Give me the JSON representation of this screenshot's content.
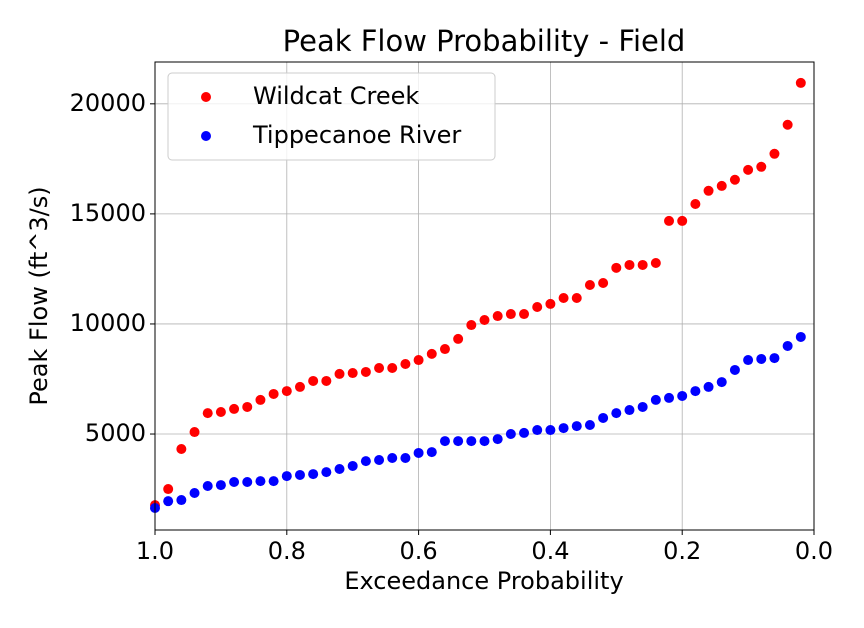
{
  "chart_data": {
    "type": "scatter",
    "title": "Peak Flow Probability - Field",
    "xlabel": "Exceedance Probability",
    "ylabel": "Peak Flow (ft^3/s)",
    "x": [
      1.0,
      0.98,
      0.96,
      0.94,
      0.92,
      0.9,
      0.88,
      0.86,
      0.84,
      0.82,
      0.8,
      0.78,
      0.76,
      0.74,
      0.72,
      0.7,
      0.68,
      0.66,
      0.64,
      0.62,
      0.6,
      0.58,
      0.56,
      0.54,
      0.52,
      0.5,
      0.48,
      0.46,
      0.44,
      0.42,
      0.4,
      0.38,
      0.36,
      0.34,
      0.32,
      0.3,
      0.28,
      0.26,
      0.24,
      0.22,
      0.2,
      0.18,
      0.16,
      0.14,
      0.12,
      0.1,
      0.08,
      0.06,
      0.04,
      0.02
    ],
    "series": [
      {
        "name": "Wildcat Creek",
        "color": "#ff0000",
        "values": [
          1770,
          2500,
          4320,
          5090,
          5950,
          6000,
          6140,
          6230,
          6550,
          6820,
          6950,
          7140,
          7410,
          7410,
          7730,
          7770,
          7820,
          8000,
          8000,
          8180,
          8360,
          8640,
          8860,
          9320,
          9950,
          10180,
          10360,
          10450,
          10450,
          10770,
          10910,
          11180,
          11180,
          11770,
          11860,
          12550,
          12680,
          12680,
          12770,
          14680,
          14680,
          15450,
          16050,
          16270,
          16550,
          17000,
          17140,
          17730,
          19050,
          20950
        ]
      },
      {
        "name": "Tippecanoe River",
        "color": "#0000ff",
        "values": [
          1640,
          1950,
          2000,
          2320,
          2640,
          2680,
          2820,
          2820,
          2860,
          2860,
          3090,
          3140,
          3180,
          3270,
          3410,
          3550,
          3770,
          3820,
          3910,
          3910,
          4140,
          4180,
          4680,
          4680,
          4680,
          4680,
          4770,
          5000,
          5050,
          5180,
          5180,
          5270,
          5360,
          5410,
          5730,
          5950,
          6090,
          6230,
          6550,
          6640,
          6730,
          6950,
          7140,
          7360,
          7910,
          8360,
          8410,
          8450,
          9000,
          9410
        ]
      }
    ],
    "xlim": [
      1.0,
      0.0
    ],
    "xticks": [
      {
        "value": 1.0,
        "label": "1.0"
      },
      0.8,
      0.6,
      0.4,
      0.2,
      {
        "value": 0.0,
        "label": "0.0"
      }
    ],
    "ylim": [
      640,
      21900
    ],
    "yticks": [
      5000,
      10000,
      15000,
      20000
    ],
    "grid": true,
    "legend": "upper-left"
  }
}
